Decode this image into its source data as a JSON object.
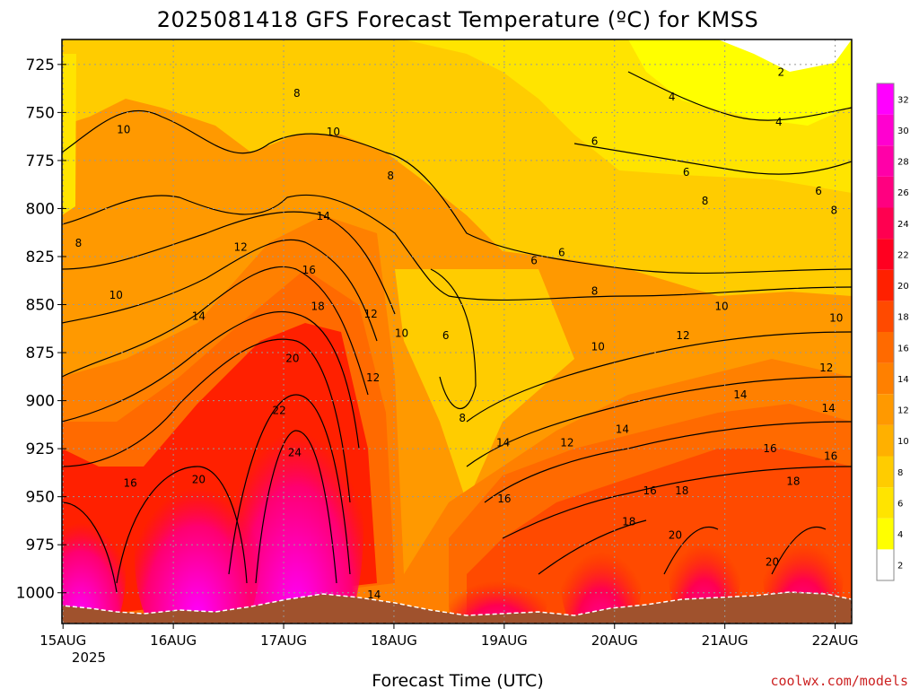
{
  "chart_data": {
    "type": "heatmap",
    "title": "2025081418 GFS Forecast Temperature (ºC) for KMSS",
    "xlabel": "Forecast Time (UTC)",
    "ylabel": "",
    "credit": "coolwx.com/models",
    "x_ticks": [
      "15AUG",
      "16AUG",
      "17AUG",
      "18AUG",
      "19AUG",
      "20AUG",
      "21AUG",
      "22AUG"
    ],
    "x_year_label": "2025",
    "x_range_days_from_15aug": [
      -0.01,
      7.15
    ],
    "y_ticks": [
      725,
      750,
      775,
      800,
      825,
      850,
      875,
      900,
      925,
      950,
      975,
      1000
    ],
    "y_range_hpa": [
      712,
      1016
    ],
    "y_invert": true,
    "grid": true,
    "colorbar": {
      "levels": [
        2,
        4,
        6,
        8,
        10,
        12,
        14,
        16,
        18,
        20,
        22,
        24,
        26,
        28,
        30,
        32
      ],
      "colors": [
        "#ffffff",
        "#ffff00",
        "#ffe400",
        "#ffcc00",
        "#ffb000",
        "#ff9900",
        "#ff8000",
        "#ff6a00",
        "#ff4a00",
        "#ff2000",
        "#ff0020",
        "#ff0050",
        "#ff0080",
        "#ff00a8",
        "#ff00d0",
        "#ff00ff"
      ],
      "placement": "right"
    },
    "contour_labels": [
      {
        "value": "2",
        "x": 6.51,
        "p": 729
      },
      {
        "value": "4",
        "x": 5.52,
        "p": 742
      },
      {
        "value": "4",
        "x": 6.49,
        "p": 755
      },
      {
        "value": "6",
        "x": 4.82,
        "p": 765
      },
      {
        "value": "6",
        "x": 5.65,
        "p": 781
      },
      {
        "value": "6",
        "x": 6.85,
        "p": 791
      },
      {
        "value": "6",
        "x": 4.27,
        "p": 827
      },
      {
        "value": "6",
        "x": 4.52,
        "p": 823
      },
      {
        "value": "6",
        "x": 3.47,
        "p": 866
      },
      {
        "value": "8",
        "x": 2.12,
        "p": 740
      },
      {
        "value": "8",
        "x": 2.97,
        "p": 783
      },
      {
        "value": "8",
        "x": 0.14,
        "p": 818
      },
      {
        "value": "8",
        "x": 5.82,
        "p": 796
      },
      {
        "value": "8",
        "x": 6.99,
        "p": 801
      },
      {
        "value": "8",
        "x": 4.82,
        "p": 843
      },
      {
        "value": "8",
        "x": 3.62,
        "p": 909
      },
      {
        "value": "10",
        "x": 0.55,
        "p": 759
      },
      {
        "value": "10",
        "x": 2.45,
        "p": 760
      },
      {
        "value": "10",
        "x": 0.48,
        "p": 845
      },
      {
        "value": "10",
        "x": 5.97,
        "p": 851
      },
      {
        "value": "10",
        "x": 7.01,
        "p": 857
      },
      {
        "value": "10",
        "x": 4.85,
        "p": 872
      },
      {
        "value": "10",
        "x": 3.07,
        "p": 865
      },
      {
        "value": "12",
        "x": 1.61,
        "p": 820
      },
      {
        "value": "12",
        "x": 2.79,
        "p": 855
      },
      {
        "value": "12",
        "x": 2.81,
        "p": 888
      },
      {
        "value": "12",
        "x": 5.62,
        "p": 866
      },
      {
        "value": "12",
        "x": 6.92,
        "p": 883
      },
      {
        "value": "12",
        "x": 4.57,
        "p": 922
      },
      {
        "value": "14",
        "x": 1.23,
        "p": 856
      },
      {
        "value": "14",
        "x": 2.36,
        "p": 804
      },
      {
        "value": "14",
        "x": 3.99,
        "p": 922
      },
      {
        "value": "14",
        "x": 5.07,
        "p": 915
      },
      {
        "value": "14",
        "x": 6.14,
        "p": 897
      },
      {
        "value": "14",
        "x": 6.94,
        "p": 904
      },
      {
        "value": "14",
        "x": 2.82,
        "p": 1001
      },
      {
        "value": "16",
        "x": 0.61,
        "p": 943
      },
      {
        "value": "16",
        "x": 2.23,
        "p": 832
      },
      {
        "value": "16",
        "x": 4.0,
        "p": 951
      },
      {
        "value": "16",
        "x": 5.32,
        "p": 947
      },
      {
        "value": "16",
        "x": 6.41,
        "p": 925
      },
      {
        "value": "16",
        "x": 6.96,
        "p": 929
      },
      {
        "value": "18",
        "x": 2.31,
        "p": 851
      },
      {
        "value": "18",
        "x": 5.13,
        "p": 963
      },
      {
        "value": "18",
        "x": 5.61,
        "p": 947
      },
      {
        "value": "18",
        "x": 6.62,
        "p": 942
      },
      {
        "value": "20",
        "x": 1.23,
        "p": 941
      },
      {
        "value": "20",
        "x": 2.08,
        "p": 878
      },
      {
        "value": "20",
        "x": 5.55,
        "p": 970
      },
      {
        "value": "20",
        "x": 6.43,
        "p": 984
      },
      {
        "value": "22",
        "x": 1.96,
        "p": 905
      },
      {
        "value": "24",
        "x": 2.1,
        "p": 927
      }
    ]
  }
}
